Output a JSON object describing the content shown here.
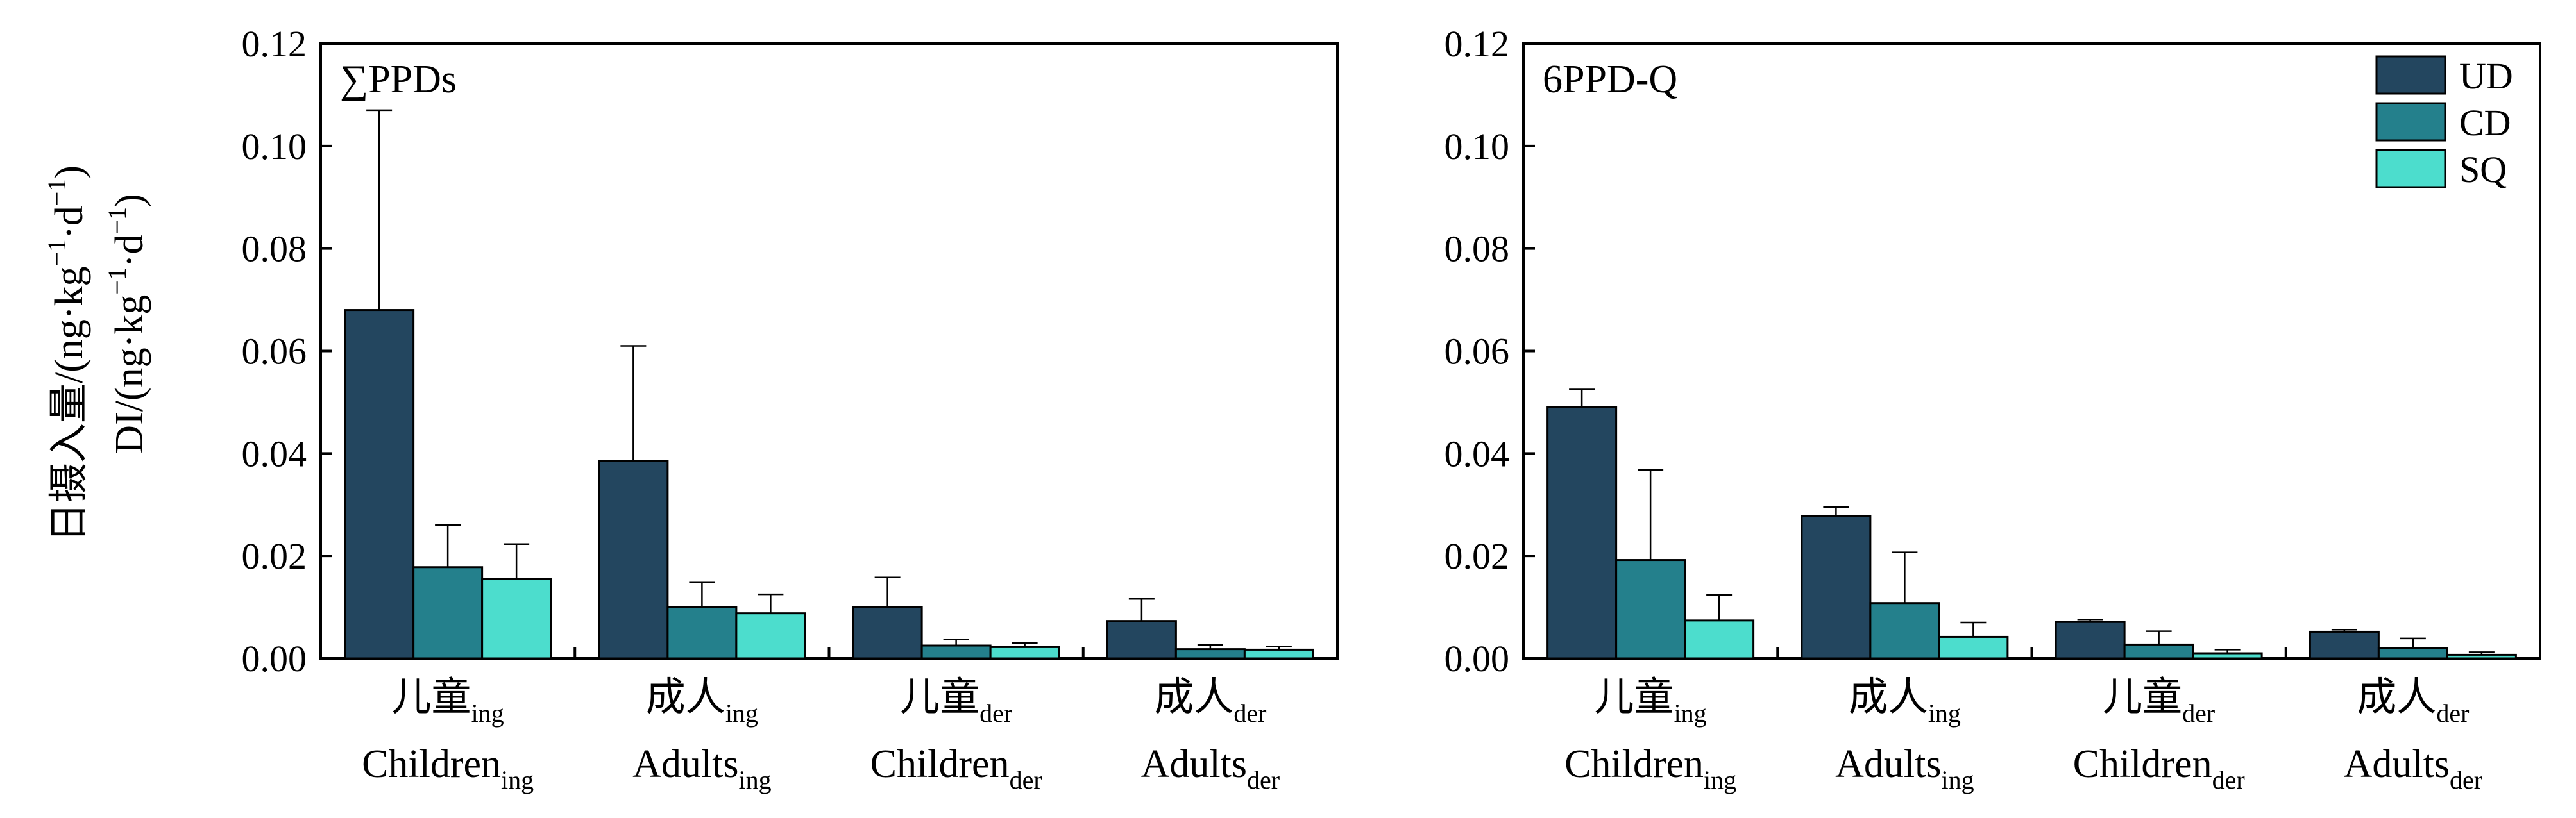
{
  "colors": {
    "UD": "#23465f",
    "CD": "#24808c",
    "SQ": "#4cddcd"
  },
  "y_axis_title": {
    "line1_prefix": "日摄入量/(ng·kg",
    "line1_sup1": "−1",
    "line1_mid": "·d",
    "line1_sup2": "−1",
    "line1_suffix": ")",
    "line2_prefix": "DI/(ng·kg",
    "line2_sup1": "−1",
    "line2_mid": "·d",
    "line2_sup2": "−1",
    "line2_suffix": ")"
  },
  "categories": [
    {
      "zh": "儿童",
      "zh_sub": "ing",
      "en": "Children",
      "en_sub": "ing"
    },
    {
      "zh": "成人",
      "zh_sub": "ing",
      "en": "Adults",
      "en_sub": "ing"
    },
    {
      "zh": "儿童",
      "zh_sub": "der",
      "en": "Children",
      "en_sub": "der"
    },
    {
      "zh": "成人",
      "zh_sub": "der",
      "en": "Adults",
      "en_sub": "der"
    }
  ],
  "legend": [
    "UD",
    "CD",
    "SQ"
  ],
  "chart_data": [
    {
      "type": "bar",
      "title": "∑PPDs",
      "ylim": [
        0,
        0.12
      ],
      "yticks": [
        "0.00",
        "0.02",
        "0.04",
        "0.06",
        "0.08",
        "0.10",
        "0.12"
      ],
      "series": [
        {
          "name": "UD",
          "values": [
            0.068,
            0.0385,
            0.01,
            0.0073
          ],
          "errors": [
            0.039,
            0.0225,
            0.0058,
            0.0043
          ]
        },
        {
          "name": "CD",
          "values": [
            0.0178,
            0.01,
            0.0025,
            0.0018
          ],
          "errors": [
            0.0082,
            0.0048,
            0.0012,
            0.0008
          ]
        },
        {
          "name": "SQ",
          "values": [
            0.0155,
            0.0088,
            0.0022,
            0.0017
          ],
          "errors": [
            0.0068,
            0.0037,
            0.0008,
            0.0006
          ]
        }
      ]
    },
    {
      "type": "bar",
      "title": "6PPD-Q",
      "ylim": [
        0,
        0.12
      ],
      "yticks": [
        "0.00",
        "0.02",
        "0.04",
        "0.06",
        "0.08",
        "0.10",
        "0.12"
      ],
      "series": [
        {
          "name": "UD",
          "values": [
            0.049,
            0.0278,
            0.0071,
            0.0052
          ],
          "errors": [
            0.0035,
            0.0017,
            0.0005,
            0.0004
          ]
        },
        {
          "name": "CD",
          "values": [
            0.0192,
            0.0108,
            0.0027,
            0.002
          ],
          "errors": [
            0.0176,
            0.0099,
            0.0026,
            0.0019
          ]
        },
        {
          "name": "SQ",
          "values": [
            0.0074,
            0.0042,
            0.001,
            0.0007
          ],
          "errors": [
            0.005,
            0.0028,
            0.0007,
            0.0005
          ]
        }
      ]
    }
  ]
}
